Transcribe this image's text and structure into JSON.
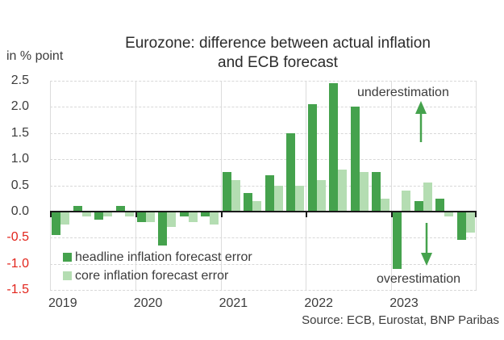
{
  "chart_data": {
    "type": "bar",
    "title": "Eurozone: difference between actual inflation and ECB forecast",
    "title_line1": "Eurozone: difference between actual inflation",
    "title_line2": "and ECB forecast",
    "unit_label": "in % point",
    "x_year_labels": [
      "2019",
      "2020",
      "2021",
      "2022",
      "2023"
    ],
    "categories": [
      "2019 Q1",
      "2019 Q2",
      "2019 Q3",
      "2019 Q4",
      "2020 Q1",
      "2020 Q2",
      "2020 Q3",
      "2020 Q4",
      "2021 Q1",
      "2021 Q2",
      "2021 Q3",
      "2021 Q4",
      "2022 Q1",
      "2022 Q2",
      "2022 Q3",
      "2022 Q4",
      "2023 Q1",
      "2023 Q2",
      "2023 Q3",
      "2023 Q4"
    ],
    "series": [
      {
        "name": "headline inflation forecast error",
        "color": "#45a24d",
        "values": [
          -0.45,
          0.1,
          -0.15,
          0.1,
          -0.2,
          -0.65,
          -0.1,
          -0.1,
          0.75,
          0.35,
          0.7,
          1.5,
          2.05,
          2.45,
          2.0,
          0.75,
          -1.1,
          0.2,
          0.25,
          -0.55
        ]
      },
      {
        "name": "core inflation forecast error",
        "color": "#b4ddb2",
        "values": [
          -0.25,
          -0.1,
          -0.1,
          -0.1,
          -0.2,
          -0.3,
          -0.2,
          -0.25,
          0.6,
          0.2,
          0.5,
          0.5,
          0.6,
          0.8,
          0.75,
          0.25,
          0.4,
          0.55,
          -0.1,
          -0.4
        ]
      }
    ],
    "ylim": [
      -1.5,
      2.5
    ],
    "ytick_step": 0.5,
    "y_tick_labels": [
      "2.5",
      "2.0",
      "1.5",
      "1.0",
      "0.5",
      "0.0",
      "-0.5",
      "-1.0",
      "-1.5"
    ],
    "grid": true,
    "legend_position": "inside-bottom-left",
    "annotations": {
      "top": "underestimation",
      "bottom": "overestimation"
    },
    "source": "Source: ECB, Eurostat, BNP Paribas",
    "colors": {
      "headline_green": "#45a24d",
      "core_green": "#b4ddb2",
      "negative_tick_red": "#e2251c",
      "zero_axis": "#1a1a1a",
      "gridline": "#d8d8d8",
      "text": "#3c3c3c"
    }
  }
}
